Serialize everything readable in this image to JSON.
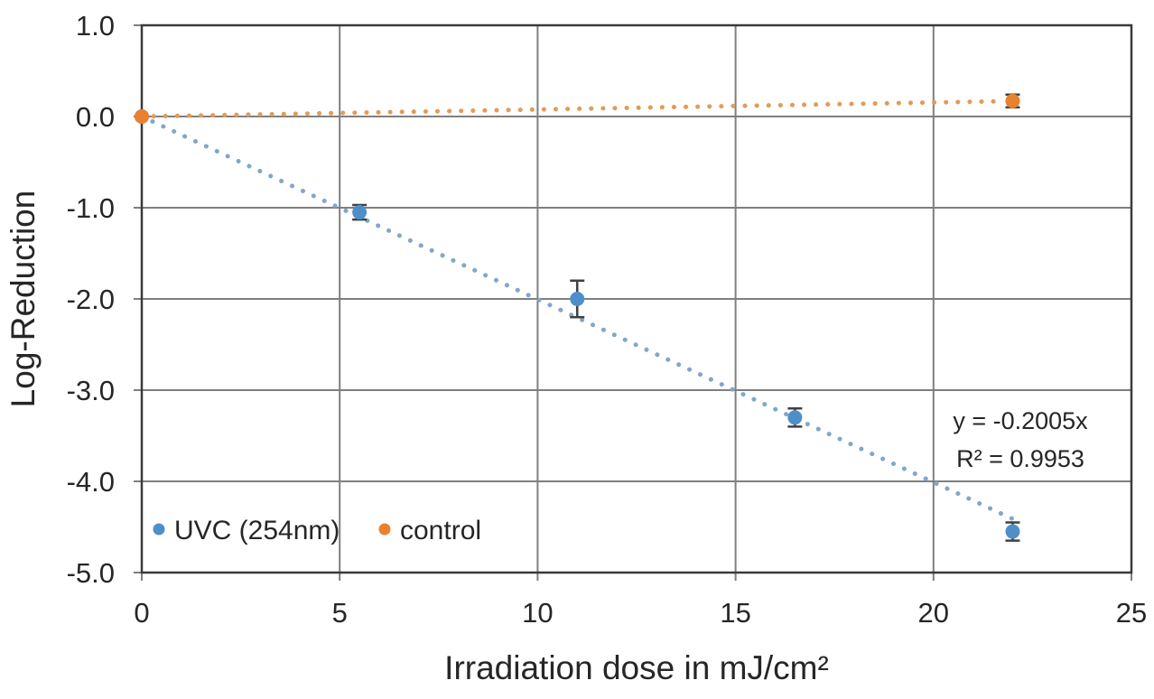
{
  "chart_data": {
    "type": "scatter",
    "title": "",
    "xlabel": "Irradiation dose in mJ/cm²",
    "ylabel": "Log-Reduction",
    "xlim": [
      0,
      25
    ],
    "ylim": [
      -5.0,
      1.0
    ],
    "xticks": [
      0,
      5,
      10,
      15,
      20,
      25
    ],
    "xtick_labels": [
      "0",
      "5",
      "10",
      "15",
      "20",
      "25"
    ],
    "yticks": [
      1.0,
      0.0,
      -1.0,
      -2.0,
      -3.0,
      -4.0,
      -5.0
    ],
    "ytick_labels": [
      "1.0",
      "0.0",
      "-1.0",
      "-2.0",
      "-3.0",
      "-4.0",
      "-5.0"
    ],
    "grid": true,
    "legend_position": "inside-bottom-left",
    "series": [
      {
        "name": "UVC (254nm)",
        "color": "#4e8fca",
        "trend_color": "#83a6c9",
        "points": [
          {
            "x": 0,
            "y": 0,
            "err": 0
          },
          {
            "x": 5.5,
            "y": -1.05,
            "err": 0.08
          },
          {
            "x": 11,
            "y": -2.0,
            "err": 0.2
          },
          {
            "x": 16.5,
            "y": -3.3,
            "err": 0.1
          },
          {
            "x": 22,
            "y": -4.55,
            "err": 0.1
          }
        ],
        "trendline": {
          "slope": -0.2005,
          "intercept": 0,
          "x_start": 0,
          "x_end": 22.1,
          "style": "dotted"
        }
      },
      {
        "name": "control",
        "color": "#e9812f",
        "trend_color": "#e29b59",
        "points": [
          {
            "x": 0,
            "y": 0,
            "err": 0
          },
          {
            "x": 22,
            "y": 0.17,
            "err": 0.07
          }
        ],
        "trendline": {
          "slope": 0.0077,
          "intercept": 0,
          "x_start": 0,
          "x_end": 21.7,
          "style": "dotted"
        }
      }
    ],
    "annotation": {
      "line1": "y = -0.2005x",
      "line2": "R² = 0.9953"
    },
    "colors": {
      "background": "#ffffff",
      "grid": "#7f7f7f",
      "border": "#3a3a3a",
      "text": "#262626",
      "error_bar": "#404040"
    }
  }
}
